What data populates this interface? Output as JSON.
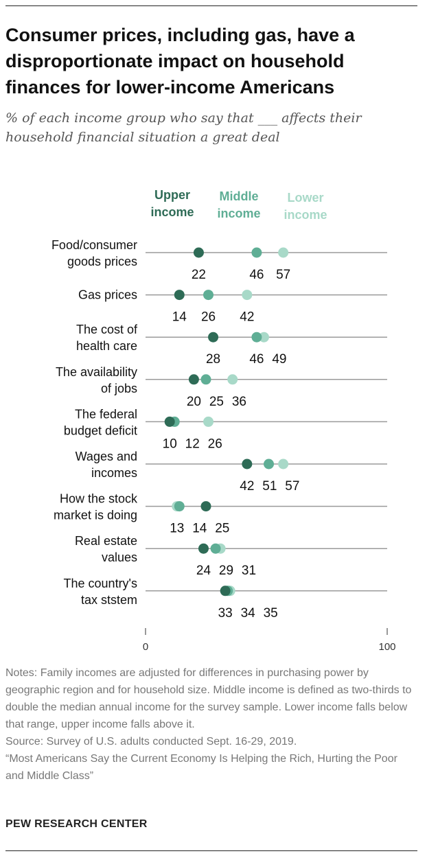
{
  "title": "Consumer prices, including gas, have a disproportionate impact on household finances for lower-income Americans",
  "subtitle": "% of each income group who say that ___ affects their household financial situation a great deal",
  "colors": {
    "upper": "#2e6b56",
    "middle": "#5fae95",
    "lower": "#a8d9c8",
    "line": "#9a9a9a"
  },
  "legend": {
    "upper": [
      "Upper",
      "income"
    ],
    "middle": [
      "Middle",
      "income"
    ],
    "lower": [
      "Lower",
      "income"
    ]
  },
  "chart_data": {
    "type": "dot plot",
    "xlim": [
      0,
      100
    ],
    "x_ticks": [
      "0",
      "100"
    ],
    "categories": [
      [
        "Food/consumer",
        "goods prices"
      ],
      [
        "Gas prices"
      ],
      [
        "The cost of",
        "health care"
      ],
      [
        "The availability",
        "of jobs"
      ],
      [
        "The federal",
        "budget deficit"
      ],
      [
        "Wages and",
        "incomes"
      ],
      [
        "How the stock",
        "market is doing"
      ],
      [
        "Real estate",
        "values"
      ],
      [
        "The country's",
        "tax ststem"
      ]
    ],
    "series": [
      {
        "name": "Upper income",
        "values": [
          22,
          14,
          28,
          20,
          10,
          42,
          25,
          24,
          33
        ]
      },
      {
        "name": "Middle income",
        "values": [
          46,
          26,
          46,
          25,
          12,
          51,
          14,
          29,
          34
        ]
      },
      {
        "name": "Lower income",
        "values": [
          57,
          42,
          49,
          36,
          26,
          57,
          13,
          31,
          35
        ]
      }
    ]
  },
  "notes": [
    "Notes:  Family incomes are adjusted for differences in purchasing power by geographic region and for household size. Middle income is defined as two-thirds to double the median annual income for the survey sample. Lower income falls below that range, upper income falls above it.",
    "Source: Survey of U.S. adults conducted Sept. 16-29, 2019.",
    "“Most Americans Say the Current Economy Is Helping the Rich, Hurting the Poor and Middle Class”"
  ],
  "brand": "PEW RESEARCH CENTER"
}
